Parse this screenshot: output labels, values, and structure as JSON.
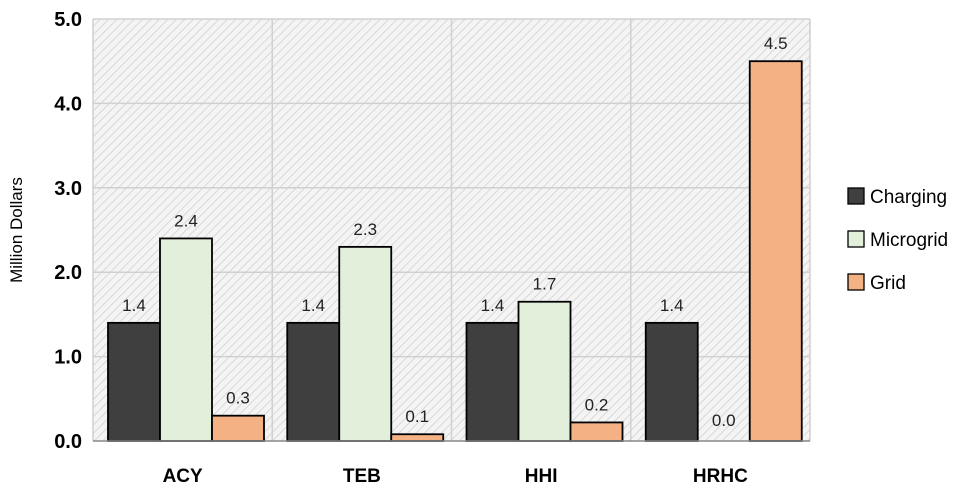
{
  "chart_data": {
    "type": "bar",
    "categories": [
      "ACY",
      "TEB",
      "HHI",
      "HRHC"
    ],
    "series": [
      {
        "name": "Charging",
        "values": [
          1.4,
          1.4,
          1.4,
          1.4
        ],
        "labels": [
          "1.4",
          "1.4",
          "1.4",
          "1.4"
        ],
        "color": "#3f3f3f"
      },
      {
        "name": "Microgrid",
        "values": [
          2.4,
          2.3,
          1.65,
          0.0
        ],
        "labels": [
          "2.4",
          "2.3",
          "1.7",
          ""
        ],
        "color": "#e2efda"
      },
      {
        "name": "Grid",
        "values": [
          0.3,
          0.08,
          0.22,
          4.5
        ],
        "labels": [
          "0.3",
          "0.1",
          "0.2",
          "4.5"
        ],
        "color": "#f4b183"
      }
    ],
    "hrhc_zero_label": "0.0",
    "ylabel": "Million Dollars",
    "ylim": [
      0,
      5
    ],
    "yticks": [
      "0.0",
      "1.0",
      "2.0",
      "3.0",
      "4.0",
      "5.0"
    ],
    "ytick_values": [
      0,
      1,
      2,
      3,
      4,
      5
    ],
    "grid": true,
    "plot_background": "hatched",
    "legend_position": "right"
  }
}
